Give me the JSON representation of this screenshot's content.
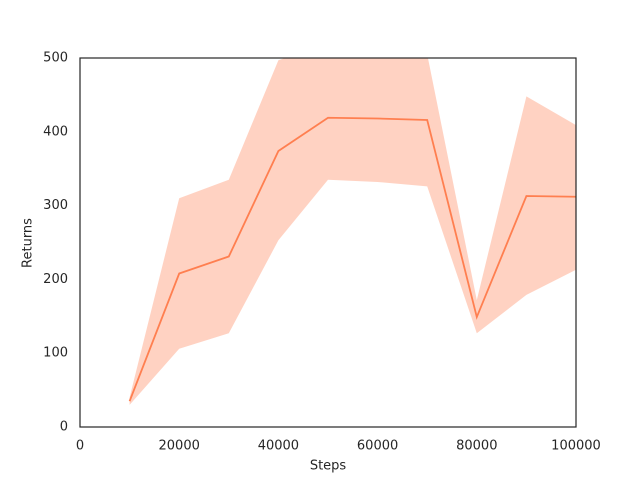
{
  "chart_data": {
    "type": "line",
    "x_label": "Steps",
    "y_label": "Returns",
    "x": [
      10000,
      20000,
      30000,
      40000,
      50000,
      60000,
      70000,
      80000,
      90000,
      100000
    ],
    "series": [
      {
        "color": "#ff7f50",
        "values": [
          35,
          208,
          231,
          374,
          419,
          418,
          416,
          149,
          313,
          312
        ],
        "lower": [
          30,
          106,
          127,
          253,
          335,
          332,
          326,
          127,
          179,
          213
        ],
        "upper": [
          40,
          310,
          335,
          497,
          520,
          515,
          505,
          172,
          448,
          409
        ]
      }
    ],
    "xlim": [
      0,
      100000
    ],
    "xticks": [
      0,
      20000,
      40000,
      60000,
      80000,
      100000
    ],
    "ylim": [
      0,
      500
    ],
    "yticks": [
      0,
      100,
      200,
      300,
      400,
      500
    ]
  }
}
